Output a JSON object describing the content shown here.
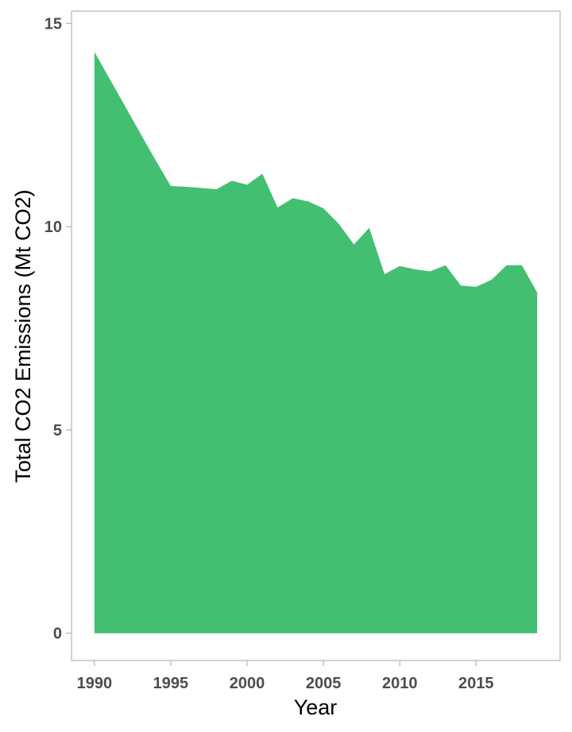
{
  "chart_data": {
    "type": "area",
    "title": "",
    "xlabel": "Year",
    "ylabel": "Total CO2 Emissions (Mt CO2)",
    "x": [
      1990,
      1991,
      1992,
      1993,
      1994,
      1995,
      1996,
      1997,
      1998,
      1999,
      2000,
      2001,
      2002,
      2003,
      2004,
      2005,
      2006,
      2007,
      2008,
      2009,
      2010,
      2011,
      2012,
      2013,
      2014,
      2015,
      2016,
      2017,
      2018,
      2019
    ],
    "series": [
      {
        "values": [
          14.3,
          13.63,
          12.97,
          12.3,
          11.64,
          11.0,
          10.98,
          10.95,
          10.92,
          11.13,
          11.03,
          11.3,
          10.47,
          10.7,
          10.62,
          10.45,
          10.07,
          9.56,
          9.97,
          8.83,
          9.03,
          8.95,
          8.9,
          9.05,
          8.55,
          8.52,
          8.69,
          9.05,
          9.05,
          8.38
        ],
        "color": "#43bf71"
      }
    ],
    "xlim": [
      1988.5,
      2020.5
    ],
    "ylim": [
      -0.67,
      15.3
    ],
    "xticks": [
      1990,
      1995,
      2000,
      2005,
      2010,
      2015
    ],
    "yticks": [
      0,
      5,
      10,
      15
    ],
    "grid": false,
    "legend": "none",
    "axis_color": "#b3b3b3"
  }
}
